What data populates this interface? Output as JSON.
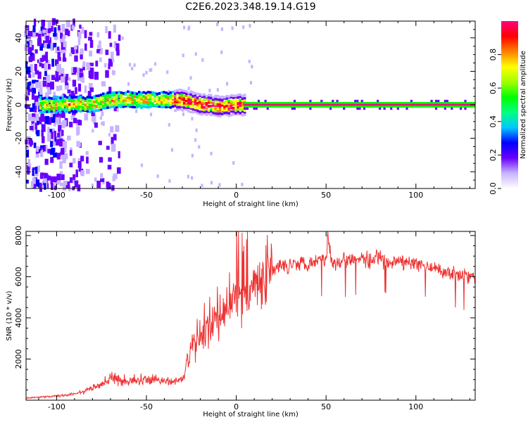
{
  "title": "C2E6.2023.348.19.14.G19",
  "chart_data": [
    {
      "type": "heatmap",
      "name": "spectrogram",
      "xlabel": "Height of straight line (km)",
      "ylabel": "Frequency (Hz)",
      "xlim": [
        -117,
        133
      ],
      "ylim": [
        -50,
        50
      ],
      "xticks": [
        "-100",
        "-50",
        "0",
        "50",
        "100"
      ],
      "yticks": [
        "-40",
        "-20",
        "0",
        "20",
        "40"
      ],
      "colorbar": {
        "label": "Normalized spectral amplitude",
        "range": [
          0.0,
          1.0
        ],
        "ticks": [
          "0.0",
          "0.2",
          "0.4",
          "0.6",
          "0.8"
        ],
        "colormap": [
          "#ffffff",
          "#c8b4ff",
          "#6a00ff",
          "#0000ff",
          "#00c8ff",
          "#00ff80",
          "#00ff00",
          "#a0ff00",
          "#ffff00",
          "#ff8000",
          "#ff0000",
          "#ff0080"
        ]
      },
      "features": {
        "ridge_center_hz": [
          {
            "x": -100,
            "y": 0
          },
          {
            "x": -80,
            "y": 0.5
          },
          {
            "x": -70,
            "y": 3
          },
          {
            "x": -60,
            "y": 3
          },
          {
            "x": -50,
            "y": 3
          },
          {
            "x": -40,
            "y": 3
          },
          {
            "x": -30,
            "y": 3
          },
          {
            "x": -20,
            "y": 0.5
          },
          {
            "x": -10,
            "y": -1
          },
          {
            "x": 0,
            "y": 0
          },
          {
            "x": 133,
            "y": 0
          }
        ],
        "noise_region_km": [
          -117,
          -80
        ],
        "strong_line_start_km": 5
      }
    },
    {
      "type": "line",
      "name": "snr",
      "xlabel": "Height of straight line (km)",
      "ylabel": "SNR (10 * v/v)",
      "xlim": [
        -117,
        133
      ],
      "ylim": [
        0,
        8200
      ],
      "xticks": [
        "-100",
        "-50",
        "0",
        "50",
        "100"
      ],
      "yticks": [
        "2000",
        "4000",
        "6000",
        "8000"
      ],
      "color": "#ee3030",
      "series": [
        {
          "x": [
            -117,
            -110,
            -100,
            -95,
            -90,
            -85,
            -80,
            -75,
            -70,
            -65,
            -60,
            -55,
            -50,
            -45,
            -40,
            -35,
            -30,
            -28,
            -25,
            -22,
            -20,
            -18,
            -15,
            -12,
            -10,
            -8,
            -5,
            -2,
            0,
            3,
            5,
            8,
            10,
            13,
            15,
            18,
            20,
            25,
            30,
            35,
            40,
            45,
            50,
            51,
            53,
            55,
            60,
            65,
            70,
            75,
            78,
            80,
            85,
            90,
            95,
            100,
            105,
            110,
            115,
            120,
            125,
            130,
            133
          ],
          "y": [
            100,
            150,
            200,
            250,
            300,
            400,
            600,
            800,
            1100,
            1000,
            900,
            1000,
            1000,
            1000,
            900,
            900,
            1000,
            1500,
            2500,
            2800,
            3000,
            3200,
            3500,
            3700,
            4000,
            4200,
            4500,
            4800,
            5000,
            5000,
            5200,
            5300,
            5500,
            5800,
            6000,
            6200,
            6300,
            6500,
            6600,
            6700,
            6700,
            6800,
            6900,
            8000,
            6800,
            6700,
            6800,
            6900,
            6900,
            6700,
            6900,
            6800,
            6700,
            6700,
            6700,
            6600,
            6500,
            6400,
            6300,
            6200,
            6100,
            6000,
            5900
          ]
        }
      ]
    }
  ]
}
